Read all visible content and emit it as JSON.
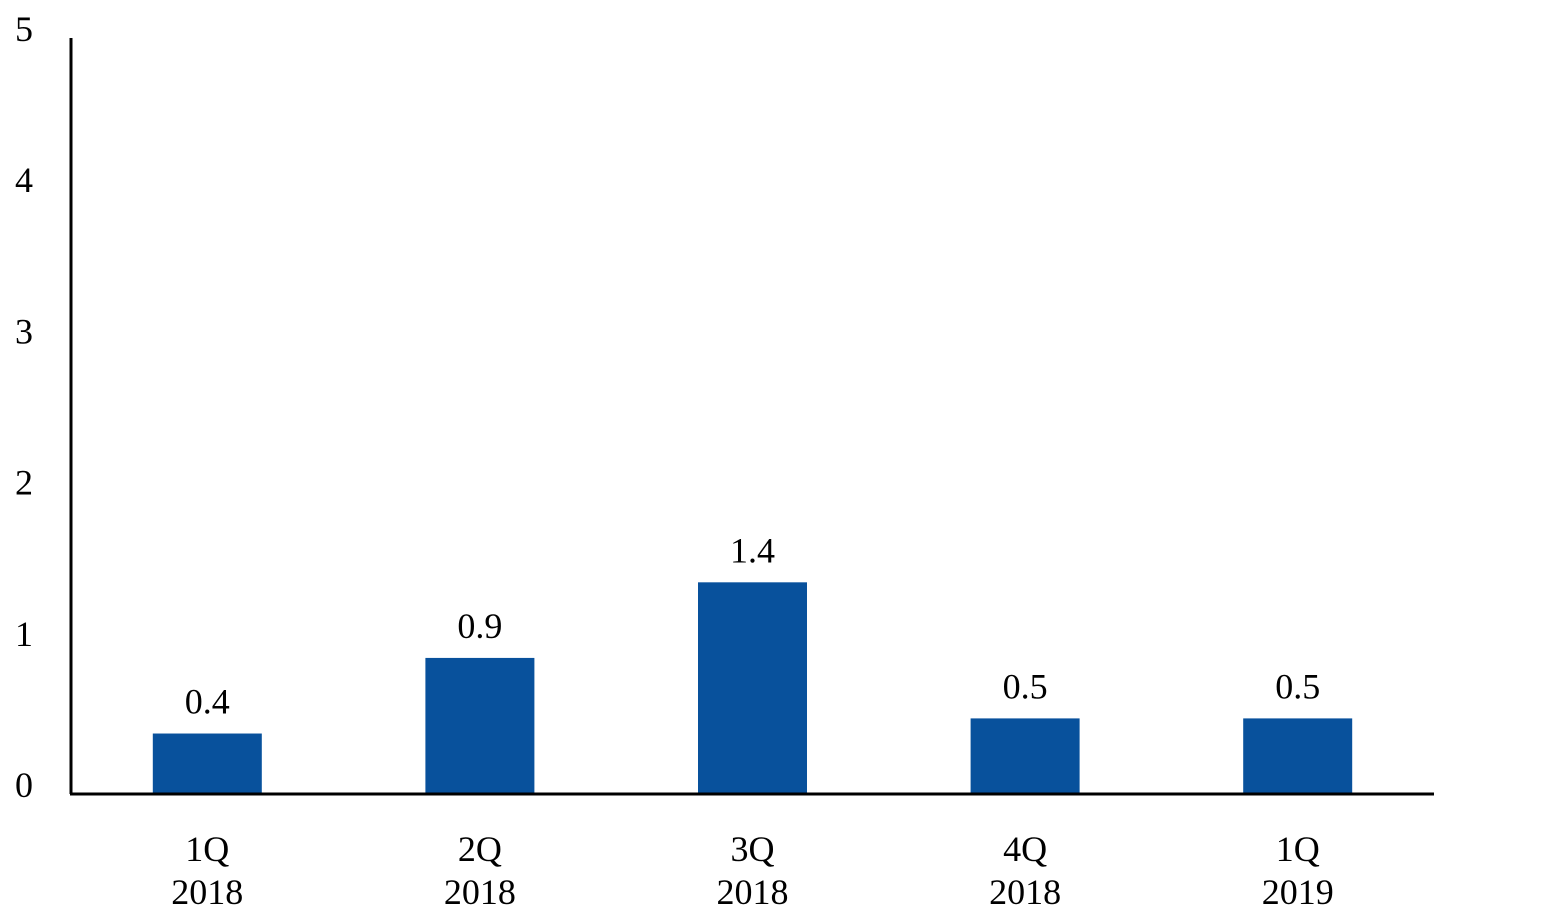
{
  "chart_data": {
    "type": "bar",
    "categories": [
      {
        "line1": "1Q",
        "line2": "2018"
      },
      {
        "line1": "2Q",
        "line2": "2018"
      },
      {
        "line1": "3Q",
        "line2": "2018"
      },
      {
        "line1": "4Q",
        "line2": "2018"
      },
      {
        "line1": "1Q",
        "line2": "2019"
      }
    ],
    "values": [
      0.4,
      0.9,
      1.4,
      0.5,
      0.5
    ],
    "data_labels": [
      "0.4",
      "0.9",
      "1.4",
      "0.5",
      "0.5"
    ],
    "yticks": [
      "0",
      "1",
      "2",
      "3",
      "4",
      "5"
    ],
    "ylim": [
      0,
      5
    ],
    "grid": false,
    "legend": "none",
    "bar_color": "#08519c",
    "title": "",
    "xlabel": "",
    "ylabel": ""
  }
}
